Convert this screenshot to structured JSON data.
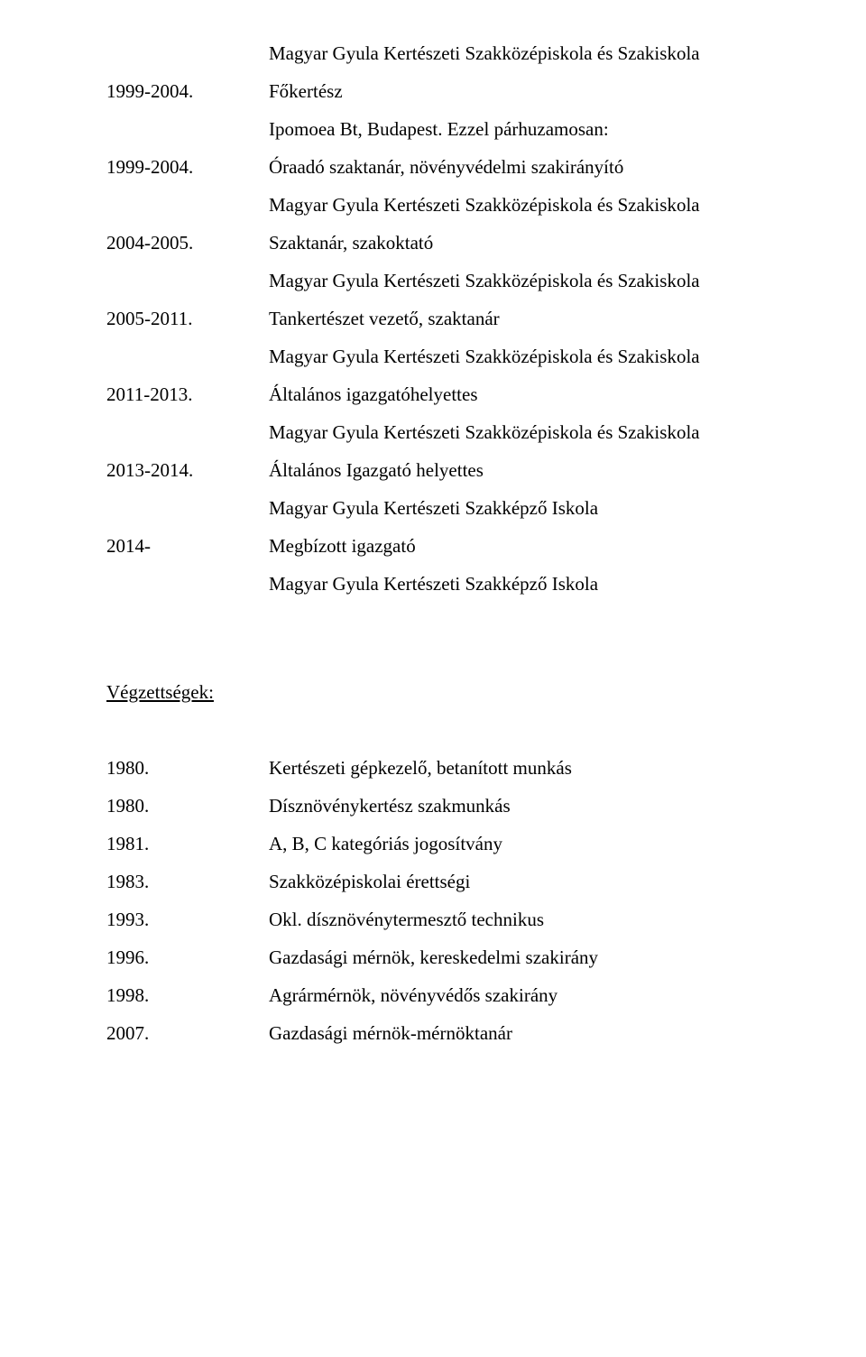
{
  "school_long": "Magyar Gyula Kertészeti Szakközépiskola és Szakiskola",
  "school_short": "Magyar Gyula Kertészeti Szakképző Iskola",
  "ipomoea": "Ipomoea Bt, Budapest. Ezzel párhuzamosan:",
  "career": [
    {
      "year": "1999-2004.",
      "role": "Főkertész"
    },
    {
      "year": "1999-2004.",
      "role": "Óraadó szaktanár, növényvédelmi szakirányító"
    },
    {
      "year": "2004-2005.",
      "role": "Szaktanár, szakoktató"
    },
    {
      "year": "2005-2011.",
      "role": "Tankertészet vezető, szaktanár"
    },
    {
      "year": "2011-2013.",
      "role": "Általános igazgatóhelyettes"
    },
    {
      "year": "2013-2014.",
      "role": "Általános Igazgató helyettes"
    },
    {
      "year": "2014-",
      "role": "Megbízott igazgató"
    }
  ],
  "qualifications_heading": "Végzettségek:",
  "qualifications": [
    {
      "year": "1980.",
      "item": "Kertészeti gépkezelő, betanított munkás"
    },
    {
      "year": "1980.",
      "item": "Dísznövénykertész szakmunkás"
    },
    {
      "year": "1981.",
      "item": "A, B, C kategóriás jogosítvány"
    },
    {
      "year": "1983.",
      "item": "Szakközépiskolai érettségi"
    },
    {
      "year": "1993.",
      "item": "Okl. dísznövénytermesztő technikus"
    },
    {
      "year": "1996.",
      "item": "Gazdasági mérnök, kereskedelmi szakirány"
    },
    {
      "year": "1998.",
      "item": "Agrármérnök, növényvédős szakirány"
    },
    {
      "year": "2007.",
      "item": "Gazdasági mérnök-mérnöktanár"
    }
  ],
  "text_color": "#000000",
  "background_color": "#ffffff",
  "font_family": "Times New Roman",
  "font_size_pt": 16
}
